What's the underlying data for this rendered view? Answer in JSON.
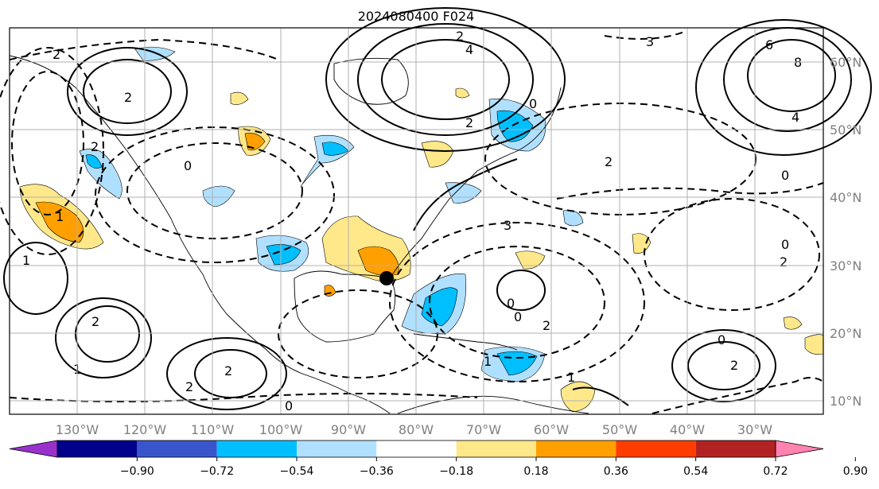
{
  "title": "2024080400 F024",
  "lon_labels": [
    "130°W",
    "120°W",
    "110°W",
    "100°W",
    "90°W",
    "80°W",
    "70°W",
    "60°W",
    "50°W",
    "40°W",
    "30°W"
  ],
  "lat_labels": [
    "60°N",
    "50°N",
    "40°N",
    "30°N",
    "20°N",
    "10°N"
  ],
  "colorbar": {
    "labels": [
      "−0.90",
      "−0.72",
      "−0.54",
      "−0.36",
      "−0.18",
      "0.18",
      "0.36",
      "0.54",
      "0.72",
      "0.90"
    ],
    "colors": [
      "#9932cc",
      "#00008b",
      "#3a55cc",
      "#00bfff",
      "#b0e0ff",
      "#ffffff",
      "#ffe88a",
      "#ffa000",
      "#ff3d00",
      "#b22222",
      "#ff82b0"
    ]
  },
  "contour_labels": [
    "2",
    "2",
    "4",
    "6",
    "8",
    "4",
    "3",
    "2",
    "0",
    "0",
    "2",
    "1",
    "1",
    "1",
    "2",
    "2",
    "2",
    "0",
    "0",
    "1",
    "2",
    "3",
    "0",
    "0",
    "0",
    "2",
    "2",
    "2",
    "1",
    "0",
    "2"
  ],
  "colors": {
    "neg_blue_light": "#b0e0ff",
    "neg_blue": "#00bfff",
    "pos_yellow": "#ffe88a",
    "pos_orange": "#ffa000",
    "grid": "#b0b0b0",
    "marker": "#000000"
  }
}
